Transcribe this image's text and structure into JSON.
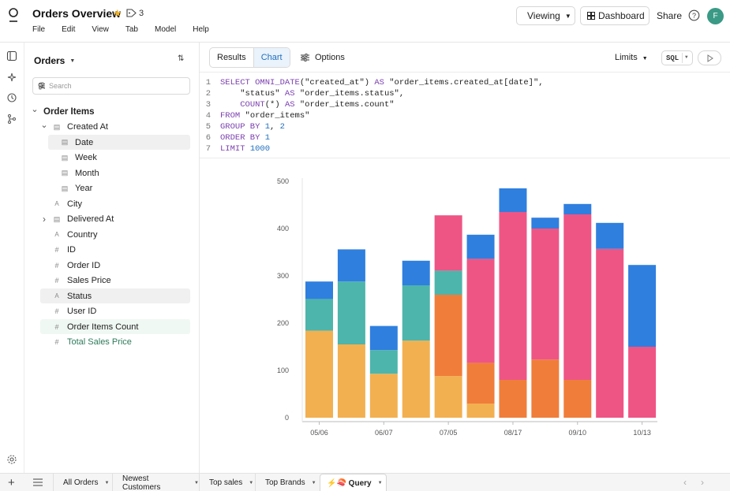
{
  "header": {
    "title": "Orders Overview",
    "tag_count": "3",
    "menu": [
      "File",
      "Edit",
      "View",
      "Tab",
      "Model",
      "Help"
    ],
    "viewing_label": "Viewing",
    "dashboard_label": "Dashboard",
    "share_label": "Share",
    "avatar_initial": "F"
  },
  "panel": {
    "title": "Orders",
    "search_placeholder": "Search",
    "tree": [
      {
        "label": "Order Items",
        "level": 0,
        "chevron": "down",
        "icon": "",
        "style": "bold"
      },
      {
        "label": "Created At",
        "level": 1,
        "chevron": "down",
        "icon": "date",
        "style": ""
      },
      {
        "label": "Date",
        "level": 2,
        "chevron": "",
        "icon": "date",
        "style": "hl"
      },
      {
        "label": "Week",
        "level": 2,
        "chevron": "",
        "icon": "date",
        "style": ""
      },
      {
        "label": "Month",
        "level": 2,
        "chevron": "",
        "icon": "date",
        "style": ""
      },
      {
        "label": "Year",
        "level": 2,
        "chevron": "",
        "icon": "date",
        "style": ""
      },
      {
        "label": "City",
        "level": 1,
        "chevron": "",
        "icon": "text",
        "style": ""
      },
      {
        "label": "Delivered At",
        "level": 1,
        "chevron": "right",
        "icon": "date",
        "style": ""
      },
      {
        "label": "Country",
        "level": 1,
        "chevron": "",
        "icon": "text",
        "style": ""
      },
      {
        "label": "ID",
        "level": 1,
        "chevron": "",
        "icon": "num",
        "style": ""
      },
      {
        "label": "Order ID",
        "level": 1,
        "chevron": "",
        "icon": "num",
        "style": ""
      },
      {
        "label": "Sales Price",
        "level": 1,
        "chevron": "",
        "icon": "num",
        "style": ""
      },
      {
        "label": "Status",
        "level": 1,
        "chevron": "",
        "icon": "text",
        "style": "hl"
      },
      {
        "label": "User ID",
        "level": 1,
        "chevron": "",
        "icon": "num",
        "style": ""
      },
      {
        "label": "Order Items Count",
        "level": 1,
        "chevron": "",
        "icon": "num",
        "style": "green-bg"
      },
      {
        "label": "Total Sales Price",
        "level": 1,
        "chevron": "",
        "icon": "num",
        "style": "green"
      }
    ]
  },
  "toolbar": {
    "tabs": [
      "Results",
      "Chart"
    ],
    "active_tab": "Chart",
    "options_label": "Options",
    "limits_label": "Limits",
    "sql_label": "SQL"
  },
  "editor": {
    "lines": [
      [
        [
          "kw",
          "SELECT "
        ],
        [
          "kw",
          "OMNI_DATE"
        ],
        [
          "plain",
          "(\"created_at\") "
        ],
        [
          "kw",
          "AS"
        ],
        [
          "plain",
          " \"order_items.created_at[date]\","
        ]
      ],
      [
        [
          "plain",
          "    \"status\" "
        ],
        [
          "kw",
          "AS"
        ],
        [
          "plain",
          " \"order_items.status\","
        ]
      ],
      [
        [
          "plain",
          "    "
        ],
        [
          "kw",
          "COUNT"
        ],
        [
          "plain",
          "(*) "
        ],
        [
          "kw",
          "AS"
        ],
        [
          "plain",
          " \"order_items.count\""
        ]
      ],
      [
        [
          "kw",
          "FROM"
        ],
        [
          "plain",
          " \"order_items\""
        ]
      ],
      [
        [
          "kw",
          "GROUP BY "
        ],
        [
          "num",
          "1"
        ],
        [
          "plain",
          ", "
        ],
        [
          "num",
          "2"
        ]
      ],
      [
        [
          "kw",
          "ORDER BY "
        ],
        [
          "num",
          "1"
        ]
      ],
      [
        [
          "kw",
          "LIMIT "
        ],
        [
          "num",
          "1000"
        ]
      ]
    ]
  },
  "chart_data": {
    "type": "bar",
    "stacked": true,
    "title": "",
    "xlabel": "",
    "ylabel": "",
    "ylim": [
      0,
      500
    ],
    "yticks": [
      0,
      100,
      200,
      300,
      400,
      500
    ],
    "categories": [
      "05/06",
      "",
      "06/07",
      "",
      "07/05",
      "",
      "08/17",
      "",
      "09/10",
      "",
      "10/13"
    ],
    "xtick_labels_shown": [
      "05/06",
      "06/07",
      "07/05",
      "08/17",
      "09/10",
      "10/13"
    ],
    "series": [
      {
        "color": "#f2b050",
        "values": [
          184,
          155,
          93,
          163,
          88,
          30,
          0,
          0,
          0,
          0,
          0
        ]
      },
      {
        "color": "#f07d3a",
        "values": [
          0,
          0,
          0,
          0,
          172,
          86,
          80,
          123,
          80,
          0,
          0
        ]
      },
      {
        "color": "#4db5ab",
        "values": [
          67,
          133,
          50,
          117,
          51,
          0,
          0,
          0,
          0,
          0,
          0
        ]
      },
      {
        "color": "#ee5585",
        "values": [
          0,
          0,
          0,
          0,
          117,
          220,
          355,
          277,
          350,
          357,
          150
        ]
      },
      {
        "color": "#2f7fdf",
        "values": [
          37,
          68,
          51,
          52,
          0,
          51,
          50,
          23,
          22,
          55,
          173
        ]
      }
    ]
  },
  "bottombar": {
    "tabs": [
      {
        "label": "All Orders",
        "active": false
      },
      {
        "label": "Newest Customers",
        "active": false
      },
      {
        "label": "Top sales",
        "active": false
      },
      {
        "label": "Top Brands",
        "active": false
      },
      {
        "label": "⚡🍣 Query",
        "active": true
      }
    ]
  }
}
